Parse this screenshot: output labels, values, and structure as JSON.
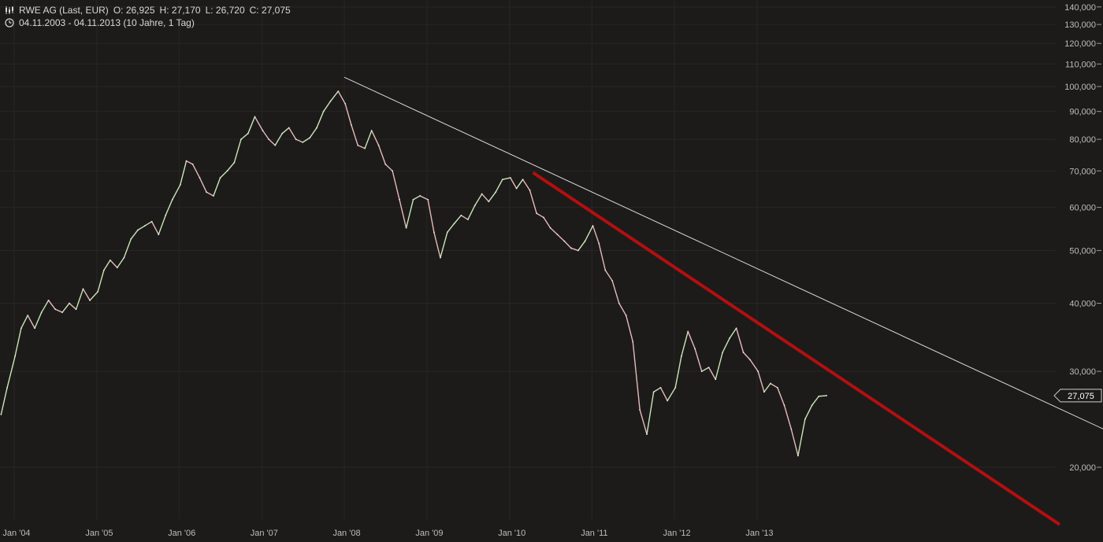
{
  "header": {
    "title": "RWE AG (Last, EUR)",
    "ohlc": {
      "open": "O: 26,925",
      "high": "H: 27,170",
      "low": "L: 26,720",
      "close": "C: 27,075"
    },
    "range": "04.11.2003 - 04.11.2013 (10 Jahre, 1 Tag)",
    "chart_icon": "candlestick-icon",
    "range_icon": "clock-icon"
  },
  "colors": {
    "background": "#1c1b1a",
    "grid": "#272625",
    "price_up": "#c9e6b5",
    "price_down": "#e8b9b9",
    "trendline_white": "#d9d9d9",
    "trendline_red": "#b30f0f"
  },
  "chart_data": {
    "type": "line",
    "title": "RWE AG (Last, EUR)",
    "xlabel": "",
    "ylabel": "",
    "y_scale": "log",
    "ylim": [
      17.5,
      141.5
    ],
    "xlim": [
      "2003-11-04",
      "2013-11-04"
    ],
    "grid": true,
    "y_ticks": [
      20,
      30,
      40,
      50,
      60,
      70,
      80,
      90,
      100,
      110,
      120,
      130,
      140
    ],
    "y_tick_labels": [
      "20,000",
      "30,000",
      "40,000",
      "50,000",
      "60,000",
      "70,000",
      "80,000",
      "90,000",
      "100,000",
      "110,000",
      "120,000",
      "130,000",
      "140,000"
    ],
    "x_ticks": [
      "2004-01-01",
      "2005-01-01",
      "2006-01-01",
      "2007-01-01",
      "2008-01-01",
      "2009-01-01",
      "2010-01-01",
      "2011-01-01",
      "2012-01-01",
      "2013-01-01"
    ],
    "x_tick_labels": [
      "Jan '04",
      "Jan '05",
      "Jan '06",
      "Jan '07",
      "Jan '08",
      "Jan '09",
      "Jan '10",
      "Jan '11",
      "Jan '12",
      "Jan '13"
    ],
    "last_value": 27.075,
    "last_value_label": "27,075",
    "series": [
      {
        "name": "RWE AG",
        "points": [
          [
            "2003-11-04",
            25.0
          ],
          [
            "2003-12-01",
            28.0
          ],
          [
            "2004-01-05",
            32.0
          ],
          [
            "2004-02-01",
            36.0
          ],
          [
            "2004-03-01",
            38.0
          ],
          [
            "2004-04-01",
            36.0
          ],
          [
            "2004-05-01",
            38.5
          ],
          [
            "2004-06-01",
            40.5
          ],
          [
            "2004-07-01",
            39.0
          ],
          [
            "2004-08-01",
            38.5
          ],
          [
            "2004-09-01",
            40.0
          ],
          [
            "2004-10-01",
            39.0
          ],
          [
            "2004-11-01",
            42.5
          ],
          [
            "2004-12-01",
            40.5
          ],
          [
            "2005-01-05",
            42.0
          ],
          [
            "2005-02-01",
            46.0
          ],
          [
            "2005-03-01",
            48.0
          ],
          [
            "2005-04-01",
            46.5
          ],
          [
            "2005-05-01",
            48.5
          ],
          [
            "2005-06-01",
            52.5
          ],
          [
            "2005-07-01",
            54.5
          ],
          [
            "2005-08-01",
            55.5
          ],
          [
            "2005-09-01",
            56.5
          ],
          [
            "2005-10-01",
            53.5
          ],
          [
            "2005-11-01",
            58.0
          ],
          [
            "2005-12-01",
            62.0
          ],
          [
            "2006-01-05",
            66.0
          ],
          [
            "2006-02-01",
            73.0
          ],
          [
            "2006-03-01",
            72.0
          ],
          [
            "2006-04-01",
            68.0
          ],
          [
            "2006-05-01",
            64.0
          ],
          [
            "2006-06-01",
            63.0
          ],
          [
            "2006-07-01",
            68.0
          ],
          [
            "2006-08-01",
            70.0
          ],
          [
            "2006-09-01",
            72.5
          ],
          [
            "2006-10-01",
            80.0
          ],
          [
            "2006-11-01",
            82.0
          ],
          [
            "2006-12-01",
            88.0
          ],
          [
            "2007-01-05",
            83.0
          ],
          [
            "2007-02-01",
            80.0
          ],
          [
            "2007-03-01",
            78.0
          ],
          [
            "2007-04-01",
            82.0
          ],
          [
            "2007-05-01",
            84.0
          ],
          [
            "2007-06-01",
            80.0
          ],
          [
            "2007-07-01",
            79.0
          ],
          [
            "2007-08-01",
            80.5
          ],
          [
            "2007-09-01",
            84.0
          ],
          [
            "2007-10-01",
            90.0
          ],
          [
            "2007-11-01",
            94.0
          ],
          [
            "2007-12-05",
            98.0
          ],
          [
            "2008-01-05",
            93.0
          ],
          [
            "2008-02-01",
            85.0
          ],
          [
            "2008-03-01",
            78.0
          ],
          [
            "2008-04-01",
            77.0
          ],
          [
            "2008-05-01",
            83.0
          ],
          [
            "2008-06-01",
            78.0
          ],
          [
            "2008-07-01",
            72.0
          ],
          [
            "2008-08-01",
            70.0
          ],
          [
            "2008-09-01",
            62.0
          ],
          [
            "2008-10-01",
            55.0
          ],
          [
            "2008-11-01",
            62.0
          ],
          [
            "2008-12-01",
            63.0
          ],
          [
            "2009-01-05",
            62.0
          ],
          [
            "2009-02-01",
            54.0
          ],
          [
            "2009-03-01",
            48.5
          ],
          [
            "2009-04-01",
            54.0
          ],
          [
            "2009-05-01",
            56.0
          ],
          [
            "2009-06-01",
            58.0
          ],
          [
            "2009-07-01",
            57.0
          ],
          [
            "2009-08-01",
            60.5
          ],
          [
            "2009-09-01",
            63.5
          ],
          [
            "2009-10-01",
            61.5
          ],
          [
            "2009-11-01",
            64.0
          ],
          [
            "2009-12-01",
            67.5
          ],
          [
            "2010-01-05",
            68.0
          ],
          [
            "2010-02-01",
            65.0
          ],
          [
            "2010-03-01",
            67.5
          ],
          [
            "2010-04-01",
            64.5
          ],
          [
            "2010-05-01",
            58.5
          ],
          [
            "2010-06-01",
            57.5
          ],
          [
            "2010-07-01",
            55.0
          ],
          [
            "2010-08-01",
            53.5
          ],
          [
            "2010-09-01",
            52.0
          ],
          [
            "2010-10-01",
            50.5
          ],
          [
            "2010-11-01",
            50.0
          ],
          [
            "2010-12-01",
            52.0
          ],
          [
            "2011-01-05",
            55.5
          ],
          [
            "2011-02-01",
            51.5
          ],
          [
            "2011-03-01",
            46.0
          ],
          [
            "2011-04-01",
            44.0
          ],
          [
            "2011-05-01",
            40.0
          ],
          [
            "2011-06-01",
            38.0
          ],
          [
            "2011-07-01",
            34.0
          ],
          [
            "2011-08-01",
            25.5
          ],
          [
            "2011-09-01",
            23.0
          ],
          [
            "2011-10-01",
            27.5
          ],
          [
            "2011-11-01",
            28.0
          ],
          [
            "2011-12-01",
            26.5
          ],
          [
            "2012-01-05",
            28.0
          ],
          [
            "2012-02-01",
            32.0
          ],
          [
            "2012-03-01",
            35.5
          ],
          [
            "2012-04-01",
            33.0
          ],
          [
            "2012-05-01",
            30.0
          ],
          [
            "2012-06-01",
            30.5
          ],
          [
            "2012-07-01",
            29.0
          ],
          [
            "2012-08-01",
            32.5
          ],
          [
            "2012-09-01",
            34.5
          ],
          [
            "2012-10-01",
            36.0
          ],
          [
            "2012-11-01",
            32.5
          ],
          [
            "2012-12-01",
            31.5
          ],
          [
            "2013-01-05",
            30.0
          ],
          [
            "2013-02-01",
            27.5
          ],
          [
            "2013-03-01",
            28.5
          ],
          [
            "2013-04-01",
            28.0
          ],
          [
            "2013-05-01",
            26.0
          ],
          [
            "2013-06-01",
            23.5
          ],
          [
            "2013-07-01",
            21.0
          ],
          [
            "2013-08-01",
            24.5
          ],
          [
            "2013-09-01",
            26.0
          ],
          [
            "2013-10-01",
            27.0
          ],
          [
            "2013-11-04",
            27.075
          ]
        ]
      }
    ],
    "trendlines": [
      {
        "color": "white",
        "from": [
          "2008-01-01",
          104.0
        ],
        "to": [
          "2017-10-01",
          21.5
        ]
      },
      {
        "color": "red",
        "from": [
          "2010-04-15",
          69.5
        ],
        "to": [
          "2016-09-01",
          15.7
        ]
      }
    ]
  }
}
